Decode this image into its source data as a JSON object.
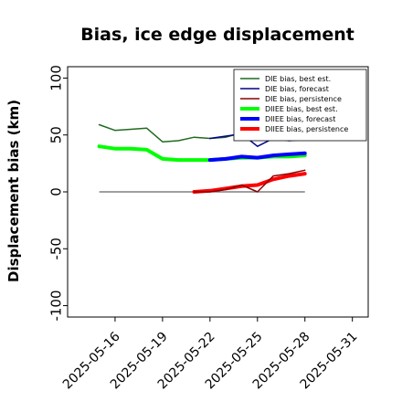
{
  "chart_data": {
    "type": "line",
    "title": "Bias, ice edge displacement",
    "ylabel": "Displacement bias (km)",
    "xlabel": "",
    "ylim": [
      -110,
      110
    ],
    "xlim": [
      "2025-05-13",
      "2025-06-01"
    ],
    "yticks": [
      100,
      50,
      0,
      -50,
      -100
    ],
    "xticks": [
      {
        "date": "2025-05-16",
        "label": "2025-05-16",
        "color": "#000000"
      },
      {
        "date": "2025-05-19",
        "label": "2025-05-19",
        "color": "#000000"
      },
      {
        "date": "2025-05-22",
        "label": "2025-05-22",
        "color": "#228b22"
      },
      {
        "date": "2025-05-25",
        "label": "2025-05-25",
        "color": "#000000"
      },
      {
        "date": "2025-05-28",
        "label": "2025-05-28",
        "color": "#000000"
      },
      {
        "date": "2025-05-31",
        "label": "2025-05-31",
        "color": "#000000"
      }
    ],
    "zero_line": {
      "y": 0,
      "x_start": "2025-05-15",
      "x_end": "2025-05-28",
      "color": "#666666"
    },
    "legend": {
      "placement": "top-right"
    },
    "series": [
      {
        "name": "DIE bias, best est.",
        "color": "#1f6b1f",
        "width": 1.5,
        "x": [
          "2025-05-15",
          "2025-05-16",
          "2025-05-17",
          "2025-05-18",
          "2025-05-19",
          "2025-05-20",
          "2025-05-21",
          "2025-05-22",
          "2025-05-23",
          "2025-05-24",
          "2025-05-25",
          "2025-05-26",
          "2025-05-27",
          "2025-05-28"
        ],
        "y": [
          59,
          54,
          55,
          56,
          44,
          45,
          48,
          47,
          48,
          52,
          50,
          58,
          61,
          57
        ]
      },
      {
        "name": "DIE bias, forecast",
        "color": "#00008b",
        "width": 1.5,
        "x": [
          "2025-05-22",
          "2025-05-23",
          "2025-05-24",
          "2025-05-25",
          "2025-05-26",
          "2025-05-27",
          "2025-05-28"
        ],
        "y": [
          47,
          49,
          51,
          40,
          47,
          45,
          46
        ]
      },
      {
        "name": "DIE bias, persistence",
        "color": "#8b0000",
        "width": 1.5,
        "x": [
          "2025-05-21",
          "2025-05-22",
          "2025-05-23",
          "2025-05-24",
          "2025-05-25",
          "2025-05-26",
          "2025-05-27",
          "2025-05-28"
        ],
        "y": [
          0,
          0,
          2,
          6,
          0,
          14,
          16,
          19
        ]
      },
      {
        "name": "DIIEE bias, best est.",
        "color": "#00ff00",
        "width": 4,
        "x": [
          "2025-05-15",
          "2025-05-16",
          "2025-05-17",
          "2025-05-18",
          "2025-05-19",
          "2025-05-20",
          "2025-05-21",
          "2025-05-22",
          "2025-05-23",
          "2025-05-24",
          "2025-05-25",
          "2025-05-26",
          "2025-05-27",
          "2025-05-28"
        ],
        "y": [
          40,
          38,
          38,
          37,
          29,
          28,
          28,
          28,
          29,
          30,
          30,
          31,
          31,
          32
        ]
      },
      {
        "name": "DIIEE bias, forecast",
        "color": "#0000ff",
        "width": 4,
        "x": [
          "2025-05-22",
          "2025-05-23",
          "2025-05-24",
          "2025-05-25",
          "2025-05-26",
          "2025-05-27",
          "2025-05-28"
        ],
        "y": [
          28,
          29,
          31,
          30,
          32,
          33,
          34
        ]
      },
      {
        "name": "DIIEE bias, persistence",
        "color": "#ff0000",
        "width": 4,
        "x": [
          "2025-05-21",
          "2025-05-22",
          "2025-05-23",
          "2025-05-24",
          "2025-05-25",
          "2025-05-26",
          "2025-05-27",
          "2025-05-28"
        ],
        "y": [
          0,
          1,
          3,
          5,
          6,
          11,
          14,
          16
        ]
      }
    ]
  }
}
